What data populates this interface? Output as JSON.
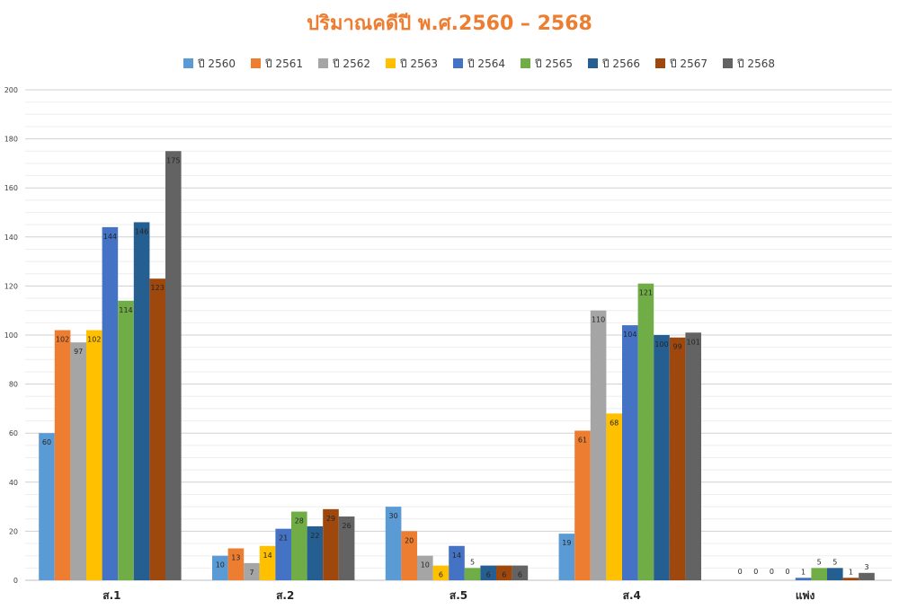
{
  "chart_data": {
    "type": "bar",
    "title": "ปริมาณคดีปี พ.ศ.2560 – 2568",
    "xlabel": "",
    "ylabel": "",
    "ylim": [
      0,
      200
    ],
    "yticks": [
      0,
      20,
      40,
      60,
      80,
      100,
      120,
      140,
      160,
      180,
      200
    ],
    "grid": true,
    "legend_position": "top",
    "categories": [
      "ส.1",
      "ส.2",
      "ส.5",
      "ส.4",
      "แพ่ง"
    ],
    "series": [
      {
        "name": "ปี 2560",
        "color": "#5b9bd5",
        "values": [
          60,
          10,
          30,
          19,
          0
        ]
      },
      {
        "name": "ปี 2561",
        "color": "#ed7d31",
        "values": [
          102,
          13,
          20,
          61,
          0
        ]
      },
      {
        "name": "ปี 2562",
        "color": "#a5a5a5",
        "values": [
          97,
          7,
          10,
          110,
          0
        ]
      },
      {
        "name": "ปี 2563",
        "color": "#ffc000",
        "values": [
          102,
          14,
          6,
          68,
          0
        ]
      },
      {
        "name": "ปี 2564",
        "color": "#4472c4",
        "values": [
          144,
          21,
          14,
          104,
          1
        ]
      },
      {
        "name": "ปี 2565",
        "color": "#70ad47",
        "values": [
          114,
          28,
          5,
          121,
          5
        ]
      },
      {
        "name": "ปี 2566",
        "color": "#255e91",
        "values": [
          146,
          22,
          6,
          100,
          5
        ]
      },
      {
        "name": "ปี 2567",
        "color": "#9e480e",
        "values": [
          123,
          29,
          6,
          99,
          1
        ]
      },
      {
        "name": "ปี 2568",
        "color": "#636363",
        "values": [
          175,
          26,
          6,
          101,
          3
        ]
      }
    ],
    "data_labels": [
      [
        "60",
        "10",
        "30",
        "19",
        "0"
      ],
      [
        "102",
        "13",
        "20",
        "61",
        "0"
      ],
      [
        "97",
        "7",
        "10",
        "110",
        "0"
      ],
      [
        "102",
        "14",
        "6",
        "68",
        "0"
      ],
      [
        "144",
        "21",
        "14",
        "104",
        "1"
      ],
      [
        "114",
        "28",
        "5",
        "121",
        "5"
      ],
      [
        "146",
        "22",
        "6",
        "100",
        "5"
      ],
      [
        "123",
        "29",
        "6",
        "99",
        "1"
      ],
      [
        "175",
        "26",
        "6",
        "101",
        "3"
      ]
    ],
    "title_color": "#ed7d31"
  }
}
